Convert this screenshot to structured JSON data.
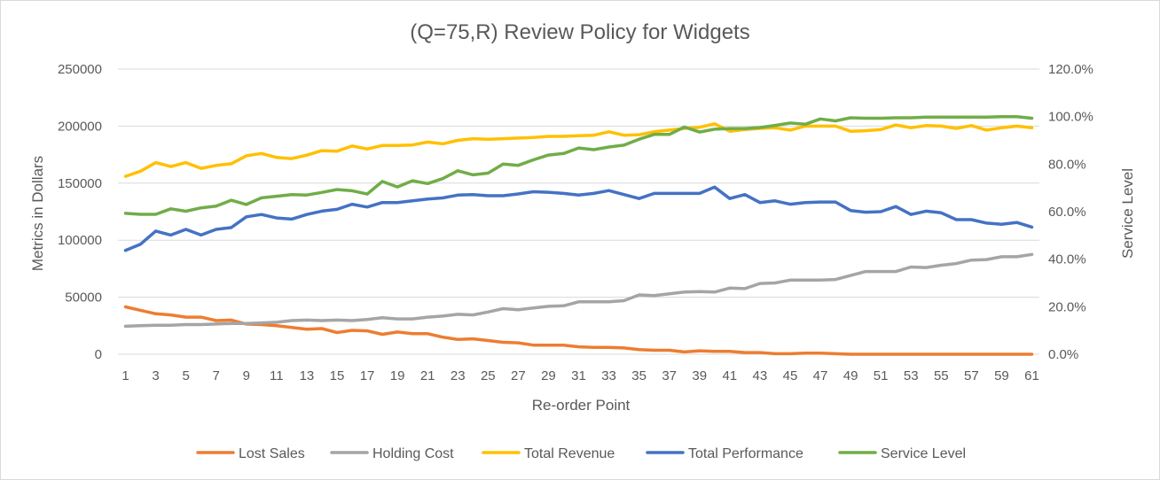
{
  "chart_data": {
    "type": "line",
    "title": "(Q=75,R) Review Policy for Widgets",
    "xlabel": "Re-order Point",
    "ylabel": "Metrics in Dollars",
    "y2label": "Service Level",
    "ylim": [
      0,
      250000
    ],
    "y2lim": [
      0,
      1.2
    ],
    "yticks": [
      "0",
      "50000",
      "100000",
      "150000",
      "200000",
      "250000"
    ],
    "y2ticks": [
      "0.0%",
      "20.0%",
      "40.0%",
      "60.0%",
      "80.0%",
      "100.0%",
      "120.0%"
    ],
    "grid": true,
    "legend_position": "bottom",
    "x": [
      1,
      2,
      3,
      4,
      5,
      6,
      7,
      8,
      9,
      10,
      11,
      12,
      13,
      14,
      15,
      16,
      17,
      18,
      19,
      20,
      21,
      22,
      23,
      24,
      25,
      26,
      27,
      28,
      29,
      30,
      31,
      32,
      33,
      34,
      35,
      36,
      37,
      38,
      39,
      40,
      41,
      42,
      43,
      44,
      45,
      46,
      47,
      48,
      49,
      50,
      51,
      52,
      53,
      54,
      55,
      56,
      57,
      58,
      59,
      60,
      61
    ],
    "xtick_labels": [
      "1",
      "3",
      "5",
      "7",
      "9",
      "11",
      "13",
      "15",
      "17",
      "19",
      "21",
      "23",
      "25",
      "27",
      "29",
      "31",
      "33",
      "35",
      "37",
      "39",
      "41",
      "43",
      "45",
      "47",
      "49",
      "51",
      "53",
      "55",
      "57",
      "59",
      "61"
    ],
    "series": [
      {
        "name": "Lost Sales",
        "color": "#ed7d31",
        "axis": "left",
        "values": [
          41500,
          38500,
          35500,
          34500,
          32500,
          32500,
          29500,
          30000,
          26500,
          26000,
          25000,
          23500,
          22000,
          22500,
          19000,
          21000,
          20500,
          17500,
          19500,
          18000,
          18000,
          15000,
          13000,
          13500,
          12000,
          10500,
          10000,
          8000,
          8000,
          8000,
          6500,
          6000,
          6000,
          5500,
          4000,
          3500,
          3500,
          2000,
          3000,
          2500,
          2500,
          1500,
          1500,
          500,
          500,
          1000,
          1000,
          500,
          0,
          0,
          0,
          0,
          0,
          0,
          0,
          0,
          0,
          0,
          0,
          0,
          0
        ]
      },
      {
        "name": "Holding Cost",
        "color": "#a5a5a5",
        "axis": "left",
        "values": [
          24500,
          25000,
          25500,
          25500,
          26000,
          26000,
          26500,
          27000,
          27000,
          27500,
          28000,
          29500,
          30000,
          29500,
          30000,
          29500,
          30500,
          32000,
          31000,
          31000,
          32500,
          33500,
          35000,
          34500,
          37000,
          40000,
          39000,
          40500,
          42000,
          42500,
          46000,
          46000,
          46000,
          47000,
          52000,
          51500,
          53000,
          54500,
          55000,
          54500,
          58000,
          57500,
          62000,
          62500,
          65000,
          65000,
          65000,
          65500,
          69000,
          72500,
          72500,
          72500,
          76500,
          76000,
          78000,
          79500,
          82500,
          83000,
          85500,
          85500,
          87500
        ]
      },
      {
        "name": "Total Revenue",
        "color": "#ffc000",
        "axis": "left",
        "values": [
          156000,
          160500,
          168000,
          164500,
          168000,
          163000,
          165500,
          167000,
          174000,
          176000,
          172500,
          171500,
          174500,
          178500,
          178000,
          182500,
          180000,
          183000,
          183000,
          183500,
          186000,
          184500,
          187500,
          189000,
          188500,
          189000,
          189500,
          190000,
          191000,
          191000,
          191500,
          192000,
          195000,
          192000,
          192500,
          195000,
          196500,
          198000,
          199000,
          202000,
          195500,
          197000,
          198000,
          198500,
          196500,
          200000,
          200000,
          200000,
          195500,
          196000,
          197000,
          201000,
          198500,
          200500,
          200000,
          198000,
          200500,
          196500,
          198500,
          200000,
          198500
        ]
      },
      {
        "name": "Total Performance",
        "color": "#4472c4",
        "axis": "left",
        "values": [
          91000,
          96500,
          108000,
          104500,
          109500,
          104500,
          109500,
          111000,
          120500,
          122500,
          119500,
          118500,
          122500,
          125500,
          127000,
          131500,
          129000,
          133000,
          133000,
          134500,
          136000,
          137000,
          139500,
          140000,
          139000,
          139000,
          140500,
          142500,
          142000,
          141000,
          139500,
          141000,
          143500,
          140000,
          136500,
          141000,
          141000,
          141000,
          141000,
          146500,
          136500,
          140000,
          133000,
          134500,
          131500,
          133000,
          133500,
          133500,
          126000,
          124500,
          125000,
          129500,
          122500,
          125500,
          124000,
          118000,
          118000,
          115000,
          114000,
          115500,
          111500
        ]
      },
      {
        "name": "Service Level",
        "color": "#70ad47",
        "axis": "right",
        "values": [
          0.593,
          0.589,
          0.589,
          0.612,
          0.602,
          0.616,
          0.623,
          0.648,
          0.63,
          0.658,
          0.665,
          0.672,
          0.67,
          0.681,
          0.693,
          0.688,
          0.674,
          0.727,
          0.704,
          0.73,
          0.718,
          0.739,
          0.772,
          0.755,
          0.762,
          0.8,
          0.795,
          0.818,
          0.838,
          0.845,
          0.868,
          0.861,
          0.872,
          0.88,
          0.905,
          0.925,
          0.925,
          0.956,
          0.935,
          0.947,
          0.95,
          0.95,
          0.954,
          0.963,
          0.973,
          0.968,
          0.99,
          0.982,
          0.995,
          0.993,
          0.993,
          0.995,
          0.995,
          0.998,
          0.998,
          0.998,
          0.998,
          0.998,
          1.0,
          1.0,
          0.993
        ]
      }
    ]
  }
}
